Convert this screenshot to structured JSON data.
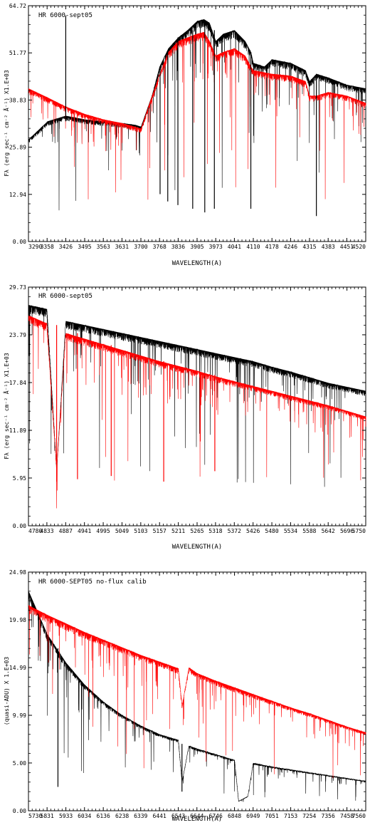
{
  "chart_data": [
    {
      "type": "line",
      "title": "HR 6000-sept05",
      "xlabel": "WAVELENGTH(A)",
      "ylabel": "Fλ (erg sec⁻¹ cm⁻² Å⁻¹) X1.E+03",
      "xlim": [
        3290,
        4520
      ],
      "ylim": [
        0,
        64.72
      ],
      "xticks": [
        "3290",
        "3358",
        "3426",
        "3495",
        "3563",
        "3631",
        "3700",
        "3768",
        "3836",
        "3905",
        "3973",
        "4041",
        "4110",
        "4178",
        "4246",
        "4315",
        "4383",
        "4451",
        "4520"
      ],
      "yticks": [
        "0.00",
        "12.94",
        "25.89",
        "38.83",
        "51.77",
        "64.72"
      ],
      "colors": {
        "observed": "#000000",
        "model": "#ff0000"
      },
      "series": [
        {
          "color": "#000000",
          "x": [
            3290,
            3360,
            3426,
            3495,
            3563,
            3631,
            3680,
            3700,
            3740,
            3768,
            3800,
            3836,
            3870,
            3905,
            3930,
            3950,
            3973,
            4000,
            4041,
            4080,
            4101,
            4110,
            4150,
            4178,
            4246,
            4300,
            4315,
            4340,
            4383,
            4451,
            4520
          ],
          "y": [
            28,
            33,
            34.5,
            33.5,
            33,
            32.5,
            32,
            31.5,
            40,
            48,
            53,
            56,
            58,
            60.5,
            61,
            60,
            55,
            57,
            58,
            55,
            52,
            49,
            48,
            50,
            49,
            47,
            44,
            46,
            45,
            43,
            42
          ]
        },
        {
          "color": "#ff0000",
          "x": [
            3290,
            3360,
            3426,
            3495,
            3563,
            3631,
            3700,
            3768,
            3800,
            3836,
            3870,
            3905,
            3930,
            3950,
            3973,
            4000,
            4041,
            4080,
            4101,
            4110,
            4178,
            4246,
            4300,
            4315,
            4340,
            4383,
            4451,
            4520
          ],
          "y": [
            42,
            39.5,
            37,
            35,
            33.5,
            32.5,
            31,
            46,
            52,
            55,
            56,
            57,
            57.5,
            55,
            51,
            52,
            53,
            51,
            48,
            47,
            46,
            45.5,
            44,
            40,
            40,
            41,
            40,
            38
          ]
        }
      ],
      "lines": [
        {
          "color": "#ff0000",
          "points": [
            [
              3700,
              46
            ],
            [
              3768,
              53
            ],
            [
              3836,
              56
            ],
            [
              3905,
              57
            ],
            [
              3973,
              52
            ],
            [
              4041,
              53
            ],
            [
              4110,
              48
            ],
            [
              4178,
              46.5
            ],
            [
              4246,
              45.5
            ],
            [
              4315,
              43
            ],
            [
              4383,
              41.5
            ],
            [
              4451,
              40
            ],
            [
              4520,
              38.5
            ]
          ]
        },
        {
          "color": "#000000",
          "points": [
            [
              3768,
              49
            ],
            [
              3836,
              57
            ],
            [
              3905,
              60
            ],
            [
              3973,
              56
            ],
            [
              4041,
              57.5
            ],
            [
              4110,
              51
            ],
            [
              4178,
              50
            ],
            [
              4246,
              49
            ],
            [
              4315,
              47
            ],
            [
              4383,
              45
            ],
            [
              4451,
              43.5
            ],
            [
              4520,
              42
            ]
          ]
        }
      ],
      "absorption_lines": [
        {
          "x": 3426,
          "y": 33,
          "color": "#000000",
          "depth_to": 62
        },
        {
          "x": 3770,
          "y": 48,
          "color": "#000000",
          "depth_to": 13
        },
        {
          "x": 3798,
          "y": 52,
          "color": "#000000",
          "depth_to": 11
        },
        {
          "x": 3835,
          "y": 56,
          "color": "#000000",
          "depth_to": 10
        },
        {
          "x": 3889,
          "y": 58,
          "color": "#000000",
          "depth_to": 9
        },
        {
          "x": 3933,
          "y": 60,
          "color": "#000000",
          "depth_to": 8
        },
        {
          "x": 3968,
          "y": 58,
          "color": "#000000",
          "depth_to": 9
        },
        {
          "x": 4101,
          "y": 52,
          "color": "#000000",
          "depth_to": 9
        },
        {
          "x": 4340,
          "y": 46,
          "color": "#000000",
          "depth_to": 7
        }
      ],
      "noise_seed": 1
    },
    {
      "type": "line",
      "title": "HR 6000-sept05",
      "xlabel": "WAVELENGTH(A)",
      "ylabel": "Fλ (erg sec⁻¹ cm⁻² Å⁻¹) X1.E+03",
      "xlim": [
        4780,
        5750
      ],
      "ylim": [
        0,
        29.73
      ],
      "xticks": [
        "4780",
        "4833",
        "4887",
        "4941",
        "4995",
        "5049",
        "5103",
        "5157",
        "5211",
        "5265",
        "5318",
        "5372",
        "5426",
        "5480",
        "5534",
        "5588",
        "5642",
        "5696",
        "5750"
      ],
      "yticks": [
        "0.00",
        "5.95",
        "11.89",
        "17.84",
        "23.79",
        "29.73"
      ],
      "colors": {
        "observed": "#000000",
        "model": "#ff0000"
      },
      "series": [
        {
          "color": "#000000",
          "x": [
            4780,
            4833,
            4861,
            4887,
            4941,
            4995,
            5049,
            5103,
            5157,
            5211,
            5265,
            5318,
            5372,
            5426,
            5480,
            5534,
            5588,
            5642,
            5696,
            5750
          ],
          "y": [
            27.5,
            27,
            7,
            25.5,
            25,
            24.5,
            24,
            23.5,
            23,
            22.5,
            22,
            21.5,
            21,
            20.5,
            19.8,
            19.2,
            18.5,
            17.8,
            17.3,
            16.8
          ]
        },
        {
          "color": "#ff0000",
          "x": [
            4780,
            4833,
            4861,
            4887,
            4941,
            4995,
            5049,
            5103,
            5157,
            5211,
            5265,
            5318,
            5372,
            5426,
            5480,
            5534,
            5588,
            5642,
            5696,
            5750
          ],
          "y": [
            26.2,
            25.2,
            7,
            24,
            23.3,
            22.6,
            21.9,
            21.2,
            20.5,
            19.9,
            19.3,
            18.6,
            18,
            17.4,
            16.8,
            16.2,
            15.6,
            15,
            14.3,
            13.6
          ]
        }
      ],
      "absorption_lines": [
        {
          "x": 4861,
          "y": 25,
          "color": "#ff0000",
          "depth_to": 5.5
        },
        {
          "x": 4921,
          "y": 24,
          "color": "#ff0000",
          "depth_to": 5.8
        },
        {
          "x": 5018,
          "y": 22.5,
          "color": "#ff0000",
          "depth_to": 6.2
        },
        {
          "x": 5169,
          "y": 20.5,
          "color": "#ff0000",
          "depth_to": 5.5
        },
        {
          "x": 5316,
          "y": 18.8,
          "color": "#ff0000",
          "depth_to": 6.8
        }
      ],
      "noise_seed": 2
    },
    {
      "type": "line",
      "title": "HR 6000-SEPT05 no-flux calib",
      "xlabel": "WAVELENGTH(A)",
      "ylabel": "(quasi-ADU) X 1.E+03",
      "xlim": [
        5730,
        7560
      ],
      "ylim": [
        0,
        24.98
      ],
      "xticks": [
        "5730",
        "5831",
        "5933",
        "6034",
        "6136",
        "6238",
        "6339",
        "6441",
        "6543",
        "6644",
        "6746",
        "6848",
        "6949",
        "7051",
        "7153",
        "7254",
        "7356",
        "7458",
        "7560"
      ],
      "yticks": [
        "0.00",
        "5.00",
        "9.99",
        "14.99",
        "19.98",
        "24.98"
      ],
      "colors": {
        "observed": "#000000",
        "model": "#ff0000"
      },
      "series": [
        {
          "color": "#000000",
          "x": [
            5730,
            5831,
            5933,
            6034,
            6136,
            6238,
            6339,
            6441,
            6543,
            6563,
            6600,
            6644,
            6746,
            6848,
            6870,
            6920,
            6949,
            7051,
            7153,
            7254,
            7356,
            7458,
            7560
          ],
          "y": [
            23,
            18.5,
            15.5,
            13.2,
            11.4,
            10,
            8.9,
            8,
            7.4,
            3,
            6.8,
            6.5,
            5.9,
            5.3,
            1,
            1.5,
            5,
            4.6,
            4.3,
            4,
            3.7,
            3.4,
            3.1
          ]
        },
        {
          "color": "#ff0000",
          "x": [
            5730,
            5831,
            5933,
            6034,
            6136,
            6238,
            6339,
            6441,
            6543,
            6563,
            6600,
            6644,
            6746,
            6848,
            6949,
            7051,
            7153,
            7254,
            7356,
            7458,
            7560
          ],
          "y": [
            21.5,
            20.5,
            19.6,
            18.7,
            17.9,
            17.1,
            16.3,
            15.6,
            14.9,
            11,
            15,
            14.4,
            13.6,
            12.9,
            12.2,
            11.5,
            10.8,
            10.2,
            9.5,
            8.8,
            8.2
          ]
        }
      ],
      "absorption_lines": [
        {
          "x": 5890,
          "y": 17,
          "color": "#000000",
          "depth_to": 2.5
        },
        {
          "x": 6563,
          "y": 7,
          "color": "#000000",
          "depth_to": 2
        }
      ],
      "noise_seed": 3
    }
  ]
}
